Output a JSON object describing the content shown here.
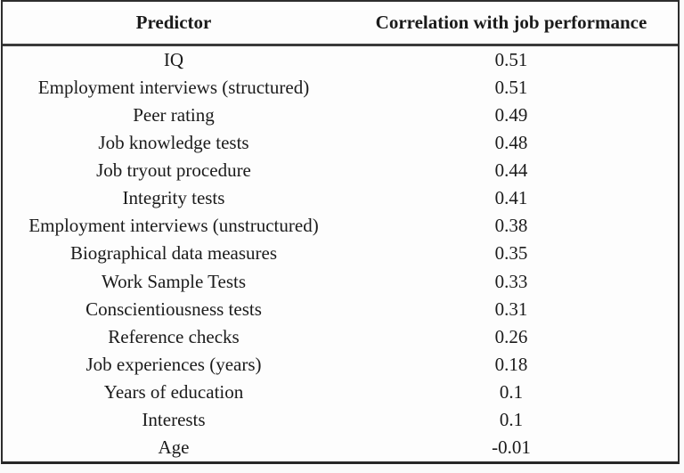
{
  "colors": {
    "table_border": "#2d2d2d",
    "header_rule": "#3a3a3a",
    "text": "#1b1b1b",
    "background": "#fdfdfd"
  },
  "table": {
    "header": {
      "predictor": "Predictor",
      "correlation": "Correlation with job performance"
    },
    "rows": [
      {
        "predictor": "IQ",
        "value": "0.51"
      },
      {
        "predictor": "Employment interviews (structured)",
        "value": "0.51"
      },
      {
        "predictor": "Peer rating",
        "value": "0.49"
      },
      {
        "predictor": "Job knowledge tests",
        "value": "0.48"
      },
      {
        "predictor": "Job tryout procedure",
        "value": "0.44"
      },
      {
        "predictor": "Integrity tests",
        "value": "0.41"
      },
      {
        "predictor": "Employment interviews (unstructured)",
        "value": "0.38"
      },
      {
        "predictor": "Biographical data measures",
        "value": "0.35"
      },
      {
        "predictor": "Work Sample Tests",
        "value": "0.33"
      },
      {
        "predictor": "Conscientiousness tests",
        "value": "0.31"
      },
      {
        "predictor": "Reference checks",
        "value": "0.26"
      },
      {
        "predictor": "Job experiences (years)",
        "value": "0.18"
      },
      {
        "predictor": "Years of education",
        "value": "0.1"
      },
      {
        "predictor": "Interests",
        "value": "0.1"
      },
      {
        "predictor": "Age",
        "value": "-0.01"
      }
    ]
  },
  "chart_data": {
    "type": "table",
    "title": "",
    "columns": [
      "Predictor",
      "Correlation with job performance"
    ],
    "categories": [
      "IQ",
      "Employment interviews (structured)",
      "Peer rating",
      "Job knowledge tests",
      "Job tryout procedure",
      "Integrity tests",
      "Employment interviews (unstructured)",
      "Biographical data measures",
      "Work Sample Tests",
      "Conscientiousness tests",
      "Reference checks",
      "Job experiences (years)",
      "Years of education",
      "Interests",
      "Age"
    ],
    "values": [
      0.51,
      0.51,
      0.49,
      0.48,
      0.44,
      0.41,
      0.38,
      0.35,
      0.33,
      0.31,
      0.26,
      0.18,
      0.1,
      0.1,
      -0.01
    ]
  }
}
